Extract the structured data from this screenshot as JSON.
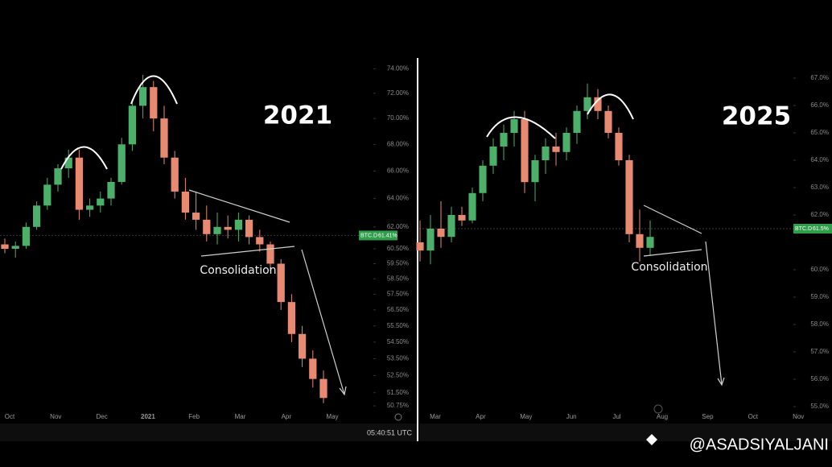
{
  "chart_data": [
    {
      "type": "candlestick",
      "title": "2021",
      "annotation": "Consolidation",
      "log_scale": true,
      "xtick_labels": [
        "Oct",
        "Nov",
        "Dec",
        "2021",
        "Feb",
        "Mar",
        "Apr",
        "May"
      ],
      "ylim": [
        49.8,
        74.7
      ],
      "yticks": [
        {
          "value": 74,
          "label": "74.00%"
        },
        {
          "value": 72,
          "label": "72.00%"
        },
        {
          "value": 70,
          "label": "70.00%"
        },
        {
          "value": 68,
          "label": "68.00%"
        },
        {
          "value": 66,
          "label": "66.00%"
        },
        {
          "value": 64,
          "label": "64.00%"
        },
        {
          "value": 62,
          "label": "62.00%"
        },
        {
          "value": 60.5,
          "label": "60.50%"
        },
        {
          "value": 59.5,
          "label": "59.50%"
        },
        {
          "value": 58.5,
          "label": "58.50%"
        },
        {
          "value": 57.5,
          "label": "57.50%"
        },
        {
          "value": 56.5,
          "label": "56.50%"
        },
        {
          "value": 55.5,
          "label": "55.50%"
        },
        {
          "value": 54.5,
          "label": "54.50%"
        },
        {
          "value": 53.5,
          "label": "53.50%"
        },
        {
          "value": 52.5,
          "label": "52.50%"
        },
        {
          "value": 51.5,
          "label": "51.50%"
        },
        {
          "value": 50.75,
          "label": "50.75%"
        }
      ],
      "symbol": "BTC.D",
      "price_tag": {
        "value": 61.41,
        "label": "61.41%"
      },
      "up_color": "#4caf6a",
      "down_color": "#e88a72",
      "series": [
        {
          "name": "BTC.D",
          "open": [
            60.8,
            60.5,
            60.7,
            62.0,
            63.5,
            65.0,
            66.2,
            67.0,
            63.2,
            63.5,
            64.0,
            65.2,
            68.0,
            71.0,
            72.5,
            70.0,
            67.0,
            64.5,
            63.0,
            62.5,
            61.5,
            62.0,
            61.8,
            62.5,
            61.3,
            60.8,
            59.5,
            57.0,
            55.0,
            53.5,
            52.3
          ],
          "high": [
            61.2,
            61.0,
            62.3,
            63.8,
            65.5,
            66.5,
            67.6,
            67.6,
            64.0,
            64.5,
            65.5,
            68.5,
            71.5,
            73.5,
            73.0,
            71.0,
            67.5,
            65.5,
            64.5,
            63.5,
            63.0,
            62.8,
            63.0,
            62.8,
            61.8,
            61.0,
            59.8,
            57.5,
            55.5,
            54.0,
            52.8
          ],
          "low": [
            60.2,
            59.9,
            60.5,
            61.8,
            63.2,
            64.5,
            65.5,
            62.5,
            62.7,
            63.0,
            63.5,
            65.0,
            67.5,
            70.0,
            69.0,
            66.5,
            64.0,
            62.5,
            61.8,
            61.0,
            60.8,
            61.2,
            61.0,
            60.8,
            60.3,
            59.0,
            56.5,
            54.5,
            53.0,
            51.8,
            50.9
          ],
          "close": [
            60.5,
            60.7,
            62.0,
            63.5,
            65.0,
            66.2,
            67.0,
            63.2,
            63.5,
            64.0,
            65.2,
            68.0,
            71.0,
            72.5,
            70.0,
            67.0,
            64.5,
            63.0,
            62.5,
            61.5,
            62.0,
            61.8,
            62.5,
            61.3,
            60.8,
            59.5,
            57.0,
            55.0,
            53.5,
            52.3,
            51.2
          ]
        }
      ]
    },
    {
      "type": "candlestick",
      "title": "2025",
      "annotation": "Consolidation",
      "log_scale": false,
      "xtick_labels": [
        "Mar",
        "Apr",
        "May",
        "Jun",
        "Jul",
        "Aug",
        "Sep",
        "Oct",
        "Nov"
      ],
      "ylim": [
        54.5,
        67.5
      ],
      "yticks": [
        {
          "value": 67,
          "label": "67.0%"
        },
        {
          "value": 66,
          "label": "66.0%"
        },
        {
          "value": 65,
          "label": "65.0%"
        },
        {
          "value": 64,
          "label": "64.0%"
        },
        {
          "value": 63,
          "label": "63.0%"
        },
        {
          "value": 62,
          "label": "62.0%"
        },
        {
          "value": 60,
          "label": "60.0%"
        },
        {
          "value": 59,
          "label": "59.0%"
        },
        {
          "value": 58,
          "label": "58.0%"
        },
        {
          "value": 57,
          "label": "57.0%"
        },
        {
          "value": 56,
          "label": "56.0%"
        },
        {
          "value": 55,
          "label": "55.0%"
        }
      ],
      "symbol": "BTC.D",
      "price_tag": {
        "value": 61.5,
        "label": "61.5%"
      },
      "up_color": "#4caf6a",
      "down_color": "#e88a72",
      "series": [
        {
          "name": "BTC.D",
          "open": [
            61.0,
            60.7,
            61.5,
            61.2,
            62.0,
            61.8,
            62.8,
            63.8,
            64.5,
            65.0,
            65.5,
            63.2,
            64.0,
            64.5,
            64.3,
            65.0,
            65.8,
            66.3,
            65.8,
            65.0,
            64.0,
            61.3,
            60.8
          ],
          "high": [
            61.8,
            62.0,
            62.5,
            62.3,
            62.3,
            63.0,
            64.0,
            64.8,
            65.3,
            65.8,
            65.8,
            64.2,
            64.8,
            65.0,
            65.2,
            66.0,
            66.8,
            66.6,
            66.0,
            65.2,
            64.2,
            62.2,
            61.8
          ],
          "low": [
            60.3,
            60.2,
            60.8,
            61.0,
            61.6,
            61.7,
            62.5,
            63.5,
            64.0,
            64.5,
            62.8,
            62.5,
            63.5,
            63.8,
            64.0,
            64.6,
            65.5,
            65.5,
            64.8,
            63.8,
            61.0,
            60.3,
            60.5
          ],
          "close": [
            60.7,
            61.5,
            61.2,
            62.0,
            61.8,
            62.8,
            63.8,
            64.5,
            65.0,
            65.5,
            63.2,
            64.0,
            64.5,
            64.3,
            65.0,
            65.8,
            66.3,
            65.8,
            65.0,
            64.0,
            61.3,
            60.8,
            61.2
          ]
        }
      ]
    }
  ],
  "time": "05:40:51 UTC",
  "watermark": "@ASADSIYALJANI"
}
